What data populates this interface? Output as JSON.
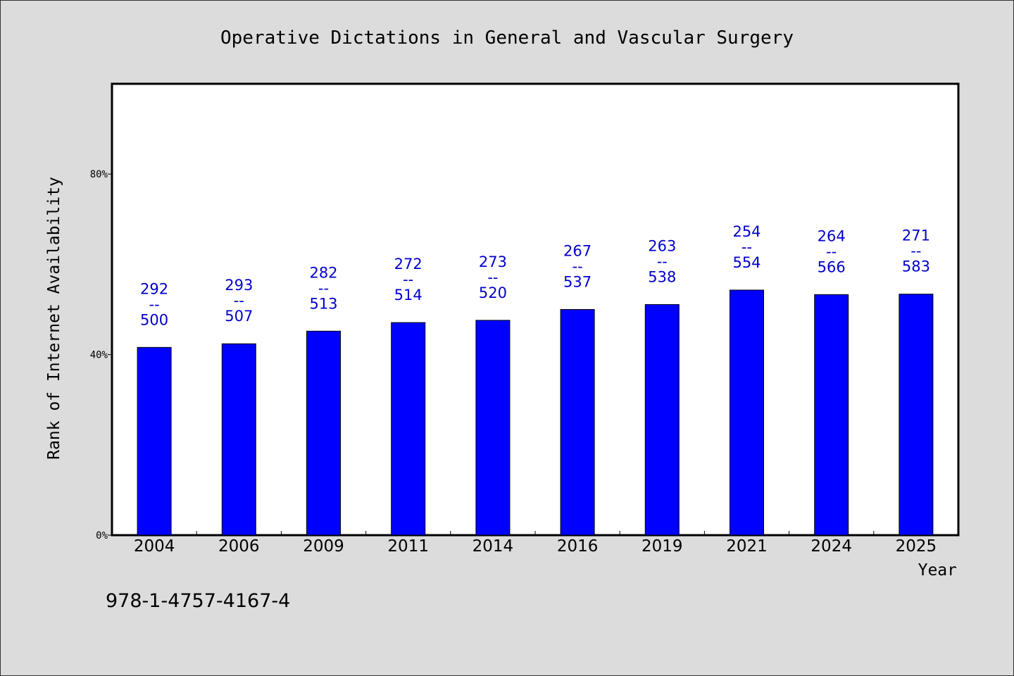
{
  "chart_data": {
    "type": "bar",
    "title": "Operative Dictations in General and Vascular Surgery",
    "xlabel": "Year",
    "ylabel": "Rank of Internet Availability",
    "categories": [
      "2004",
      "2006",
      "2009",
      "2011",
      "2014",
      "2016",
      "2019",
      "2021",
      "2024",
      "2025"
    ],
    "values": [
      41.6,
      42.4,
      45.2,
      47.1,
      47.6,
      50.0,
      51.1,
      54.3,
      53.3,
      53.4
    ],
    "unit": "%",
    "ylim": [
      0,
      100
    ],
    "yticks": [
      0,
      40,
      80
    ],
    "ytick_labels": [
      "0%",
      "40%",
      "80%"
    ],
    "data_labels": [
      {
        "top": "292",
        "sep": "--",
        "bottom": "500"
      },
      {
        "top": "293",
        "sep": "--",
        "bottom": "507"
      },
      {
        "top": "282",
        "sep": "--",
        "bottom": "513"
      },
      {
        "top": "272",
        "sep": "--",
        "bottom": "514"
      },
      {
        "top": "273",
        "sep": "--",
        "bottom": "520"
      },
      {
        "top": "267",
        "sep": "--",
        "bottom": "537"
      },
      {
        "top": "263",
        "sep": "--",
        "bottom": "538"
      },
      {
        "top": "254",
        "sep": "--",
        "bottom": "554"
      },
      {
        "top": "264",
        "sep": "--",
        "bottom": "566"
      },
      {
        "top": "271",
        "sep": "--",
        "bottom": "583"
      }
    ],
    "grid": false,
    "legend": "none",
    "colors": {
      "bar": "#0000ff",
      "label": "#0000cc",
      "background": "#dcdcdc",
      "plot_area": "#ffffff"
    }
  },
  "footer": {
    "isbn": "978-1-4757-4167-4"
  }
}
